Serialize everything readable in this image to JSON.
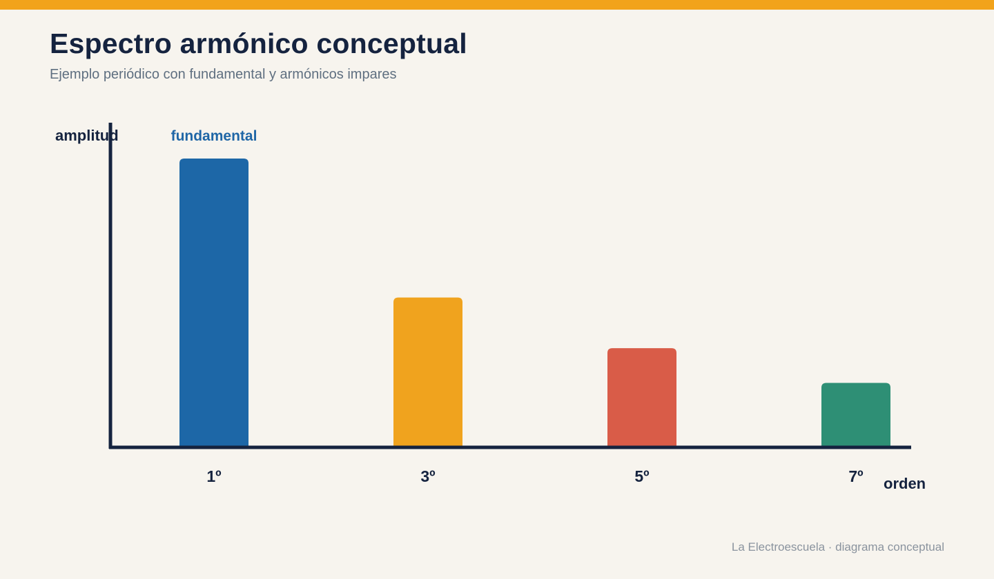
{
  "page": {
    "title": "Espectro armónico conceptual",
    "subtitle": "Ejemplo periódico con fundamental y armónicos impares",
    "footer": "La Electroescuela · diagrama conceptual"
  },
  "colors": {
    "accent_bar": "#f2a31b",
    "axis": "#15233f",
    "text_dark": "#15233f",
    "fundamental_label": "#1f66a6"
  },
  "chart_data": {
    "type": "bar",
    "title": "Espectro armónico conceptual",
    "subtitle": "Ejemplo periódico con fundamental y armónicos impares",
    "xlabel": "orden",
    "ylabel": "amplitud",
    "categories": [
      "1º",
      "3º",
      "5º",
      "7º"
    ],
    "values": [
      1.0,
      0.52,
      0.345,
      0.225
    ],
    "ylim": [
      0,
      1.05
    ],
    "bar_colors": [
      "#1d67a7",
      "#f0a31e",
      "#d95c48",
      "#2e8f75"
    ],
    "annotation": {
      "category": "1º",
      "text": "fundamental"
    },
    "grid": false
  }
}
